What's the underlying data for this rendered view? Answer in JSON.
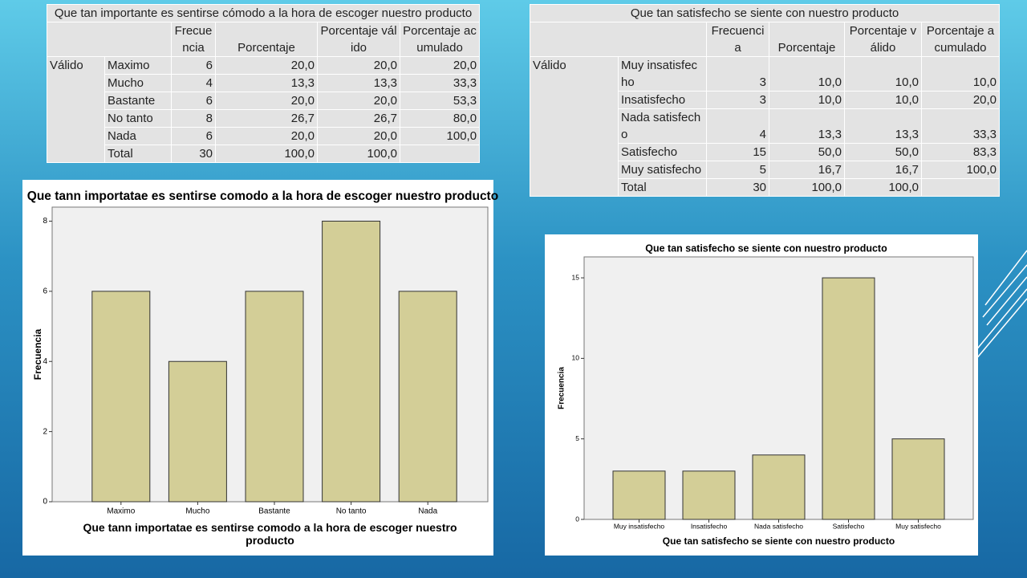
{
  "tables": [
    {
      "title": "Que tan importante es sentirse cómodo a la hora de escoger nuestro producto",
      "headers": [
        "Frecuencia",
        "Porcentaje",
        "Porcentaje válido",
        "Porcentaje acumulado"
      ],
      "group": "Válido",
      "rows": [
        [
          "Maximo",
          "6",
          "20,0",
          "20,0",
          "20,0"
        ],
        [
          "Mucho",
          "4",
          "13,3",
          "13,3",
          "33,3"
        ],
        [
          "Bastante",
          "6",
          "20,0",
          "20,0",
          "53,3"
        ],
        [
          "No tanto",
          "8",
          "26,7",
          "26,7",
          "80,0"
        ],
        [
          "Nada",
          "6",
          "20,0",
          "20,0",
          "100,0"
        ],
        [
          "Total",
          "30",
          "100,0",
          "100,0"
        ]
      ]
    },
    {
      "title": "Que tan satisfecho se siente con nuestro producto",
      "headers": [
        "Frecuencia",
        "Porcentaje",
        "Porcentaje válido",
        "Porcentaje acumulado"
      ],
      "group": "Válido",
      "rows": [
        [
          "Muy insatisfecho",
          "3",
          "10,0",
          "10,0",
          "10,0"
        ],
        [
          "Insatisfecho",
          "3",
          "10,0",
          "10,0",
          "20,0"
        ],
        [
          "Nada satisfecho",
          "4",
          "13,3",
          "13,3",
          "33,3"
        ],
        [
          "Satisfecho",
          "15",
          "50,0",
          "50,0",
          "83,3"
        ],
        [
          "Muy satisfecho",
          "5",
          "16,7",
          "16,7",
          "100,0"
        ],
        [
          "Total",
          "30",
          "100,0",
          "100,0"
        ]
      ]
    }
  ],
  "chart_data": [
    {
      "type": "bar",
      "title": "Que tann importatae es sentirse comodo a la hora de escoger nuestro producto",
      "xlabel": "Que tann importatae es sentirse comodo a la hora de escoger nuestro producto",
      "ylabel": "Frecuencia",
      "categories": [
        "Maximo",
        "Mucho",
        "Bastante",
        "No tanto",
        "Nada"
      ],
      "values": [
        6,
        4,
        6,
        8,
        6
      ],
      "color": "#d3ce97",
      "ylim": [
        0,
        8.4
      ],
      "yticks": [
        0,
        2,
        4,
        6,
        8
      ]
    },
    {
      "type": "bar",
      "title": "Que tan satisfecho se siente con nuestro producto",
      "xlabel": "Que tan satisfecho se siente con nuestro producto",
      "ylabel": "Frecuencia",
      "categories": [
        "Muy insatisfecho",
        "Insatisfecho",
        "Nada satisfecho",
        "Satisfecho",
        "Muy satisfecho"
      ],
      "values": [
        3,
        3,
        4,
        15,
        5
      ],
      "color": "#d3ce97",
      "ylim": [
        0,
        16.3
      ],
      "yticks": [
        0,
        5,
        10,
        15
      ]
    }
  ]
}
